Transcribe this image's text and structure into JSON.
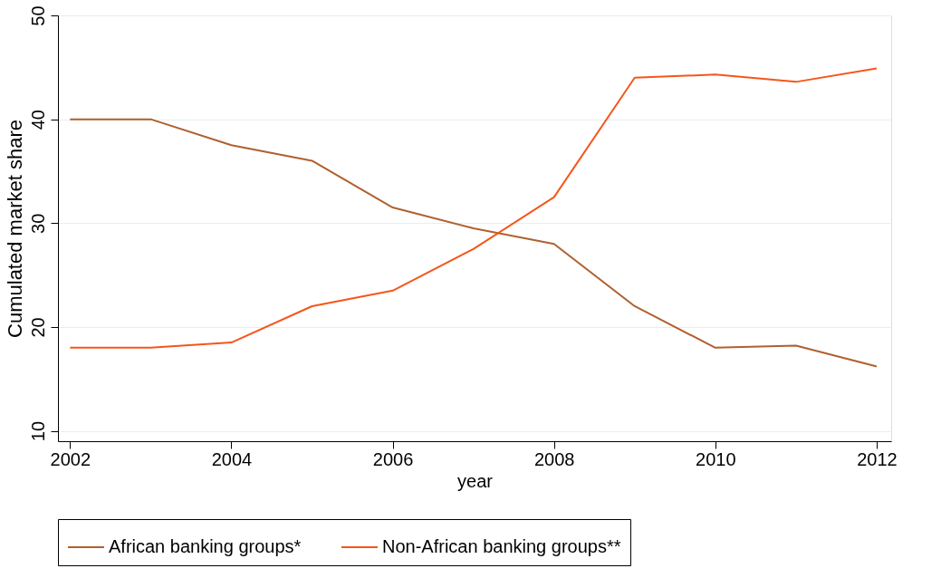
{
  "chart_data": {
    "type": "line",
    "xlabel": "year",
    "ylabel": "Cumulated market share",
    "x": [
      2002,
      2003,
      2004,
      2005,
      2006,
      2007,
      2008,
      2009,
      2010,
      2011,
      2012
    ],
    "series": [
      {
        "name": "African banking groups*",
        "color": "#b0602e",
        "values": [
          40,
          40,
          37.5,
          36,
          31.5,
          29.5,
          28,
          22,
          18,
          18.2,
          16.2
        ]
      },
      {
        "name": "Non-African banking groups**",
        "color": "#f5561a",
        "values": [
          18,
          18,
          18.5,
          22,
          23.5,
          27.5,
          32.5,
          44,
          44.3,
          43.6,
          44.9
        ]
      }
    ],
    "xlim": [
      2001.85,
      2012.18
    ],
    "xticks": [
      2002,
      2004,
      2006,
      2008,
      2010,
      2012
    ],
    "ylim": [
      9,
      50
    ],
    "yticks": [
      10,
      20,
      30,
      40,
      50
    ],
    "grid": "y",
    "legend": "bottom",
    "marker": "none",
    "line_style": "solid"
  }
}
